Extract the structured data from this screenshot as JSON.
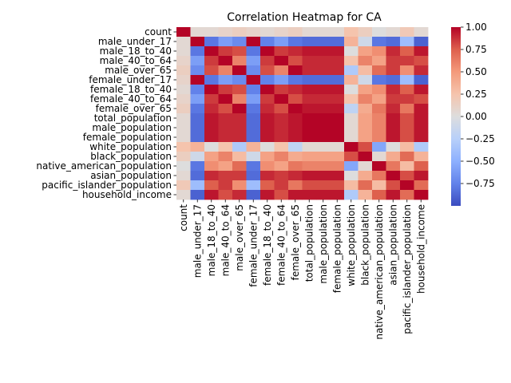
{
  "chart_data": {
    "type": "heatmap",
    "title": "Correlation Heatmap for CA",
    "labels": [
      "count",
      "male_under_17",
      "male_18_to_40",
      "male_40_to_64",
      "male_over_65",
      "female_under_17",
      "female_18_to_40",
      "female_40_to_64",
      "female_over_65",
      "total_population",
      "male_population",
      "female_population",
      "white_population",
      "black_population",
      "native_american_population",
      "asian_population",
      "pacific_islander_population",
      "household_income"
    ],
    "values": [
      [
        1.0,
        0.05,
        0.05,
        0.1,
        0.15,
        0.1,
        0.05,
        0.1,
        0.15,
        0.05,
        0.05,
        0.05,
        0.25,
        0.15,
        0.0,
        0.05,
        0.2,
        0.05
      ],
      [
        0.05,
        1.0,
        -0.8,
        -0.6,
        -0.7,
        1.0,
        -0.75,
        -0.6,
        -0.8,
        -0.85,
        -0.85,
        -0.85,
        0.35,
        -0.1,
        -0.8,
        -0.85,
        -0.4,
        -0.9
      ],
      [
        0.05,
        -0.8,
        1.0,
        0.85,
        0.8,
        -0.8,
        1.0,
        0.85,
        0.9,
        0.95,
        0.95,
        0.95,
        0.0,
        0.45,
        0.55,
        0.9,
        0.75,
        0.95
      ],
      [
        0.1,
        -0.6,
        0.85,
        1.0,
        0.6,
        -0.6,
        0.85,
        1.0,
        0.8,
        0.9,
        0.9,
        0.9,
        0.25,
        0.6,
        0.45,
        0.85,
        0.85,
        0.8
      ],
      [
        0.15,
        -0.7,
        0.8,
        0.6,
        1.0,
        -0.7,
        0.8,
        0.6,
        1.0,
        0.9,
        0.9,
        0.9,
        -0.3,
        0.3,
        0.7,
        0.85,
        0.55,
        0.9
      ],
      [
        0.1,
        1.0,
        -0.8,
        -0.6,
        -0.7,
        1.0,
        -0.75,
        -0.6,
        -0.8,
        -0.85,
        -0.85,
        -0.85,
        0.35,
        -0.1,
        -0.8,
        -0.85,
        -0.4,
        -0.9
      ],
      [
        0.05,
        -0.75,
        1.0,
        0.85,
        0.8,
        -0.75,
        1.0,
        0.85,
        0.9,
        0.95,
        0.95,
        0.95,
        0.0,
        0.45,
        0.55,
        0.9,
        0.75,
        0.95
      ],
      [
        0.1,
        -0.6,
        0.85,
        1.0,
        0.6,
        -0.6,
        0.85,
        1.0,
        0.8,
        0.9,
        0.9,
        0.9,
        0.25,
        0.6,
        0.45,
        0.85,
        0.85,
        0.8
      ],
      [
        0.15,
        -0.8,
        0.9,
        0.8,
        1.0,
        -0.8,
        0.9,
        0.8,
        1.0,
        0.95,
        0.95,
        0.95,
        -0.2,
        0.4,
        0.65,
        0.9,
        0.65,
        0.95
      ],
      [
        0.05,
        -0.85,
        0.95,
        0.9,
        0.9,
        -0.85,
        0.95,
        0.9,
        0.95,
        1.0,
        1.0,
        1.0,
        0.05,
        0.45,
        0.6,
        0.95,
        0.8,
        0.95
      ],
      [
        0.05,
        -0.85,
        0.95,
        0.9,
        0.9,
        -0.85,
        0.95,
        0.9,
        0.95,
        1.0,
        1.0,
        1.0,
        0.05,
        0.45,
        0.6,
        0.95,
        0.8,
        0.95
      ],
      [
        0.05,
        -0.85,
        0.95,
        0.9,
        0.9,
        -0.85,
        0.95,
        0.9,
        0.95,
        1.0,
        1.0,
        1.0,
        0.05,
        0.45,
        0.6,
        0.95,
        0.8,
        0.95
      ],
      [
        0.25,
        0.35,
        0.0,
        0.25,
        -0.3,
        0.35,
        0.0,
        0.25,
        -0.2,
        0.05,
        0.05,
        0.05,
        1.0,
        0.8,
        -0.55,
        0.0,
        0.3,
        -0.3
      ],
      [
        0.15,
        -0.1,
        0.45,
        0.6,
        0.3,
        -0.1,
        0.45,
        0.6,
        0.4,
        0.45,
        0.45,
        0.45,
        0.8,
        1.0,
        0.05,
        0.4,
        0.7,
        0.35
      ],
      [
        0.0,
        -0.8,
        0.55,
        0.45,
        0.7,
        -0.8,
        0.55,
        0.45,
        0.65,
        0.6,
        0.6,
        0.6,
        -0.55,
        0.05,
        1.0,
        0.65,
        0.3,
        0.75
      ],
      [
        0.05,
        -0.85,
        0.9,
        0.85,
        0.85,
        -0.85,
        0.9,
        0.85,
        0.9,
        0.95,
        0.95,
        0.95,
        0.0,
        0.4,
        0.65,
        1.0,
        0.8,
        0.95
      ],
      [
        0.2,
        -0.4,
        0.75,
        0.85,
        0.55,
        -0.4,
        0.75,
        0.85,
        0.65,
        0.8,
        0.8,
        0.8,
        0.3,
        0.7,
        0.3,
        0.8,
        1.0,
        0.7
      ],
      [
        0.05,
        -0.9,
        0.95,
        0.8,
        0.9,
        -0.9,
        0.95,
        0.8,
        0.95,
        0.95,
        0.95,
        0.95,
        -0.3,
        0.35,
        0.75,
        0.95,
        0.7,
        1.0
      ]
    ],
    "vmin": -1.0,
    "vmax": 1.0,
    "colormap": "coolwarm",
    "colorbar_ticks": [
      1.0,
      0.75,
      0.5,
      0.25,
      0.0,
      -0.25,
      -0.5,
      -0.75
    ],
    "colorbar_tick_labels": [
      "1.00",
      "0.75",
      "0.50",
      "0.25",
      "0.00",
      "−0.25",
      "−0.50",
      "−0.75"
    ],
    "grid": false
  }
}
